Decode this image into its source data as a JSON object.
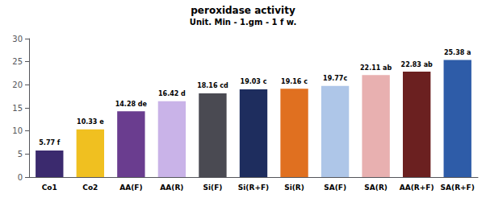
{
  "chart_data": {
    "type": "bar",
    "title": "peroxidase activity",
    "subtitle": "Unit. Min - 1.gm - 1 f w.",
    "categories": [
      "Co1",
      "Co2",
      "AA(F)",
      "AA(R)",
      "Si(F)",
      "Si(R+F)",
      "Si(R)",
      "SA(F)",
      "SA(R)",
      "AA(R+F)",
      "SA(R+F)"
    ],
    "values": [
      5.77,
      10.33,
      14.28,
      16.42,
      18.16,
      19.03,
      19.16,
      19.77,
      22.11,
      22.83,
      25.38
    ],
    "value_labels": [
      "5.77 f",
      "10.33 e",
      "14.28 de",
      "16.42 d",
      "18.16 cd",
      "19.03 c",
      "19.16 c",
      "19.77c",
      "22.11 ab",
      "22.83 ab",
      "25.38 a"
    ],
    "colors": [
      "#3b2a6e",
      "#f0c020",
      "#6a3d8f",
      "#c9b3e8",
      "#4a4a52",
      "#1e2d5e",
      "#e07020",
      "#aec6e8",
      "#e8b0b0",
      "#6b2020",
      "#2e5ca8"
    ],
    "ylim": [
      0,
      30
    ],
    "yticks": [
      0,
      5,
      10,
      15,
      20,
      25,
      30
    ],
    "grid": false,
    "data_labels": true
  }
}
